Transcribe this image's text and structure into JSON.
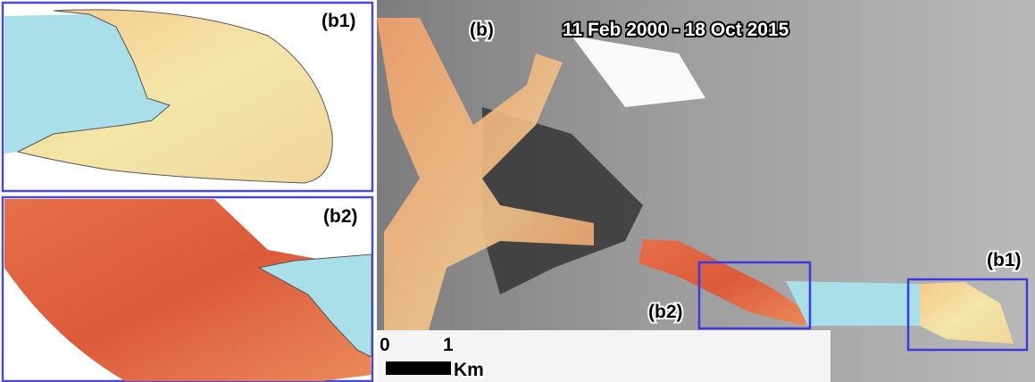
{
  "panels": {
    "b1": {
      "label": "(b1)"
    },
    "b2": {
      "label": "(b2)"
    }
  },
  "main_map": {
    "label": "(b)",
    "title": "11 Feb 2000 - 18 Oct 2015",
    "inset_labels": [
      "(b2)",
      "(b1)"
    ]
  },
  "scale_bar": {
    "labels": [
      "0",
      "1"
    ],
    "unit": "Km"
  }
}
